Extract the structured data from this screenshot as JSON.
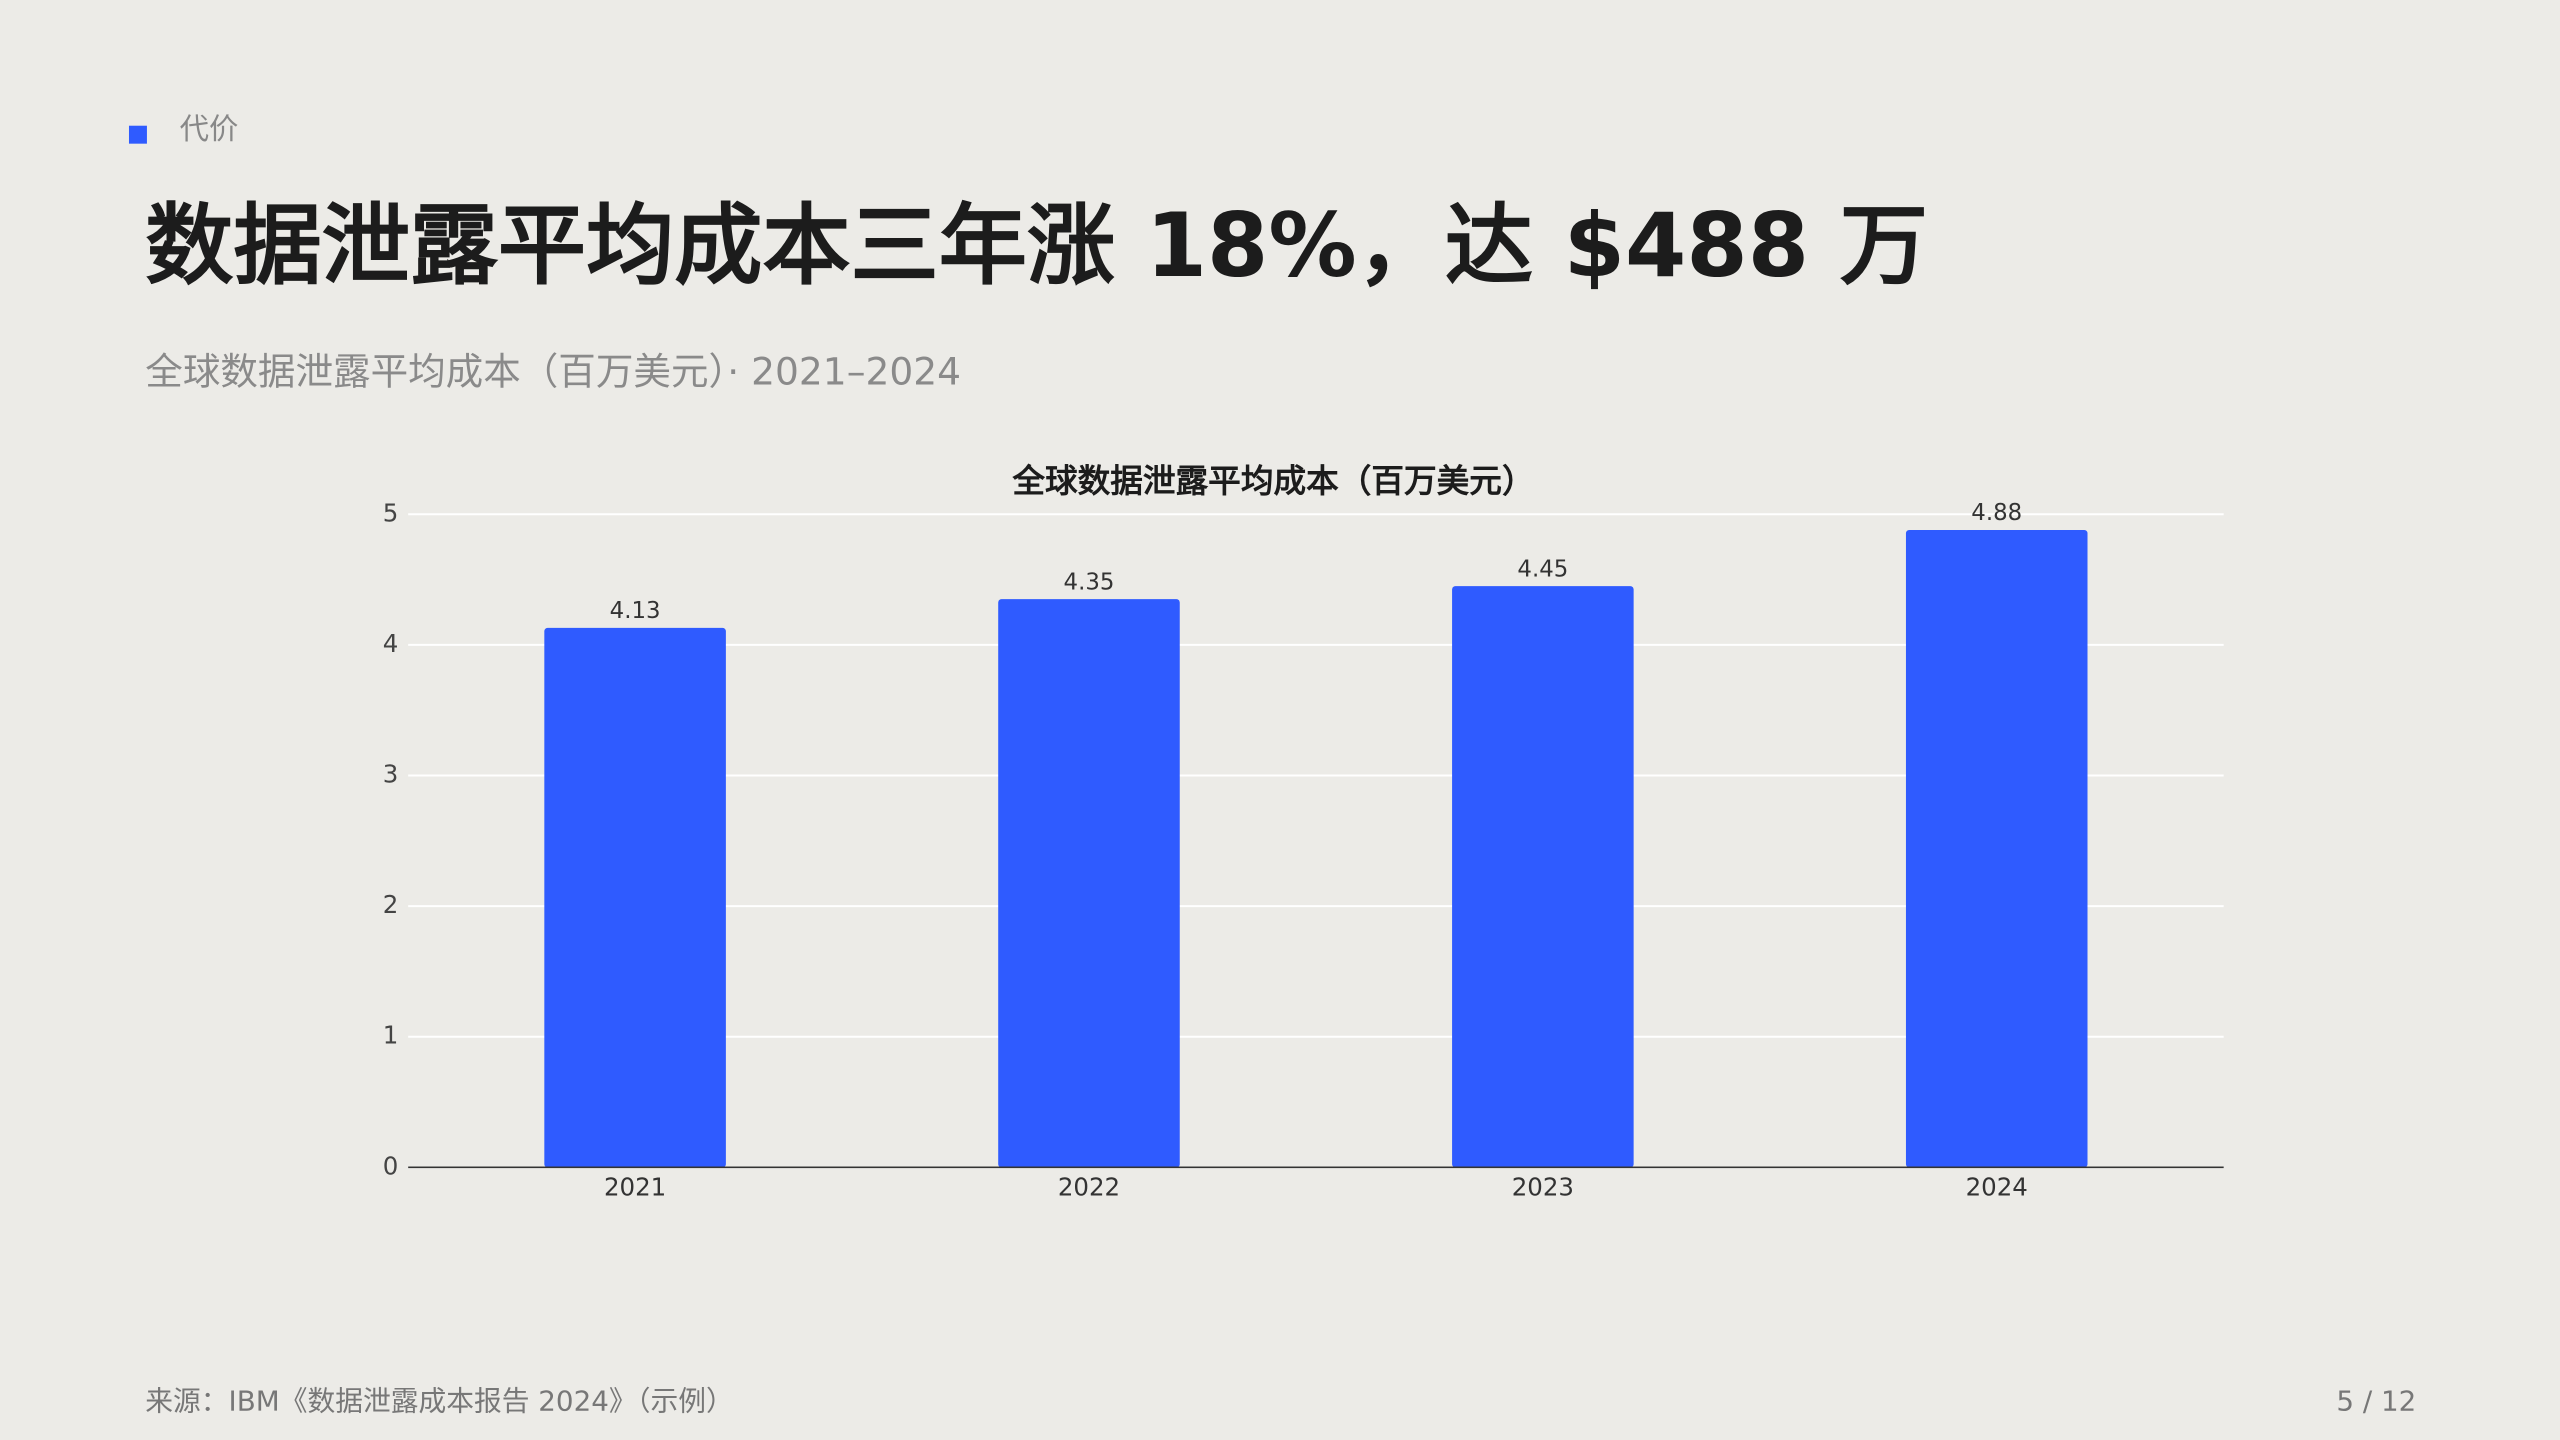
{
  "header": {
    "kicker": "代价",
    "title": "数据泄露平均成本三年涨 18%，达 $488 万",
    "subtitle": "全球数据泄露平均成本（百万美元）· 2021–2024"
  },
  "chart_data": {
    "type": "bar",
    "title": "全球数据泄露平均成本（百万美元）",
    "categories": [
      "2021",
      "2022",
      "2023",
      "2024"
    ],
    "values": [
      4.13,
      4.35,
      4.45,
      4.88
    ],
    "color": "#2f5bff",
    "ylim": [
      0,
      5
    ],
    "yticks": [
      0,
      1,
      2,
      3,
      4,
      5
    ],
    "grid": true
  },
  "footer": {
    "source": "来源：IBM《数据泄露成本报告 2024》（示例）",
    "page": "5 / 12"
  }
}
